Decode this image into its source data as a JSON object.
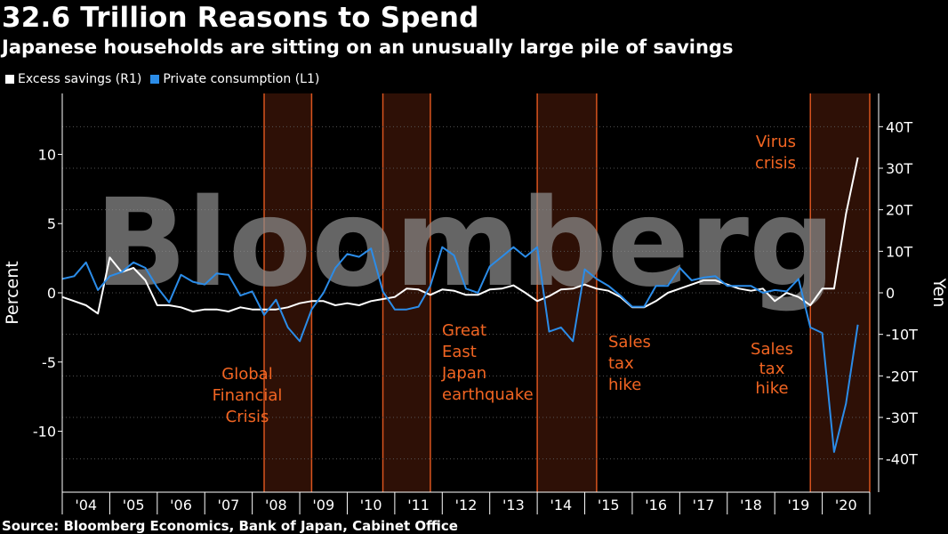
{
  "title": "32.6 Trillion Reasons to Spend",
  "subtitle": "Japanese households are sitting on an unusually large pile of savings",
  "source": "Source: Bloomberg Economics, Bank of Japan, Cabinet Office",
  "watermark": "Bloomberg",
  "colors": {
    "excess": "#ffffff",
    "consumption": "#2b8ce8",
    "shade": "#2e1006",
    "shade_edge": "#d9541e",
    "annotation": "#f26522"
  },
  "chart_data": {
    "type": "line",
    "title": "32.6 Trillion Reasons to Spend",
    "legend": [
      {
        "label": "Excess savings (R1)",
        "color": "#ffffff",
        "axis": "right"
      },
      {
        "label": "Private consumption (L1)",
        "color": "#2b8ce8",
        "axis": "left"
      }
    ],
    "ylabel_left": "Percent",
    "ylabel_right": "Yen",
    "left_ticks": [
      10,
      5,
      0,
      -5,
      -10
    ],
    "left_tick_labels": [
      "10",
      "5",
      "0",
      "-5",
      "-10"
    ],
    "ylim_left": [
      -14.4,
      14.4
    ],
    "right_ticks": [
      40,
      30,
      20,
      10,
      0,
      -10,
      -20,
      -30,
      -40
    ],
    "right_tick_labels": [
      "40T",
      "30T",
      "20T",
      "10T",
      "0",
      "-10T",
      "-20T",
      "-30T",
      "-40T"
    ],
    "ylim_right": [
      -48,
      48
    ],
    "year_labels": [
      "'04",
      "'05",
      "'06",
      "'07",
      "'08",
      "'09",
      "'10",
      "'11",
      "'12",
      "'13",
      "'14",
      "'15",
      "'16",
      "'17",
      "'18",
      "'19",
      "'20"
    ],
    "x_start": 2004.0,
    "x_end": 2021.0,
    "series": [
      {
        "name": "Private consumption (L1)",
        "axis": "left",
        "x": [
          2004.0,
          2004.25,
          2004.5,
          2004.75,
          2005.0,
          2005.25,
          2005.5,
          2005.75,
          2006.0,
          2006.25,
          2006.5,
          2006.75,
          2007.0,
          2007.25,
          2007.5,
          2007.75,
          2008.0,
          2008.25,
          2008.5,
          2008.75,
          2009.0,
          2009.25,
          2009.5,
          2009.75,
          2010.0,
          2010.25,
          2010.5,
          2010.75,
          2011.0,
          2011.25,
          2011.5,
          2011.75,
          2012.0,
          2012.25,
          2012.5,
          2012.75,
          2013.0,
          2013.25,
          2013.5,
          2013.75,
          2014.0,
          2014.25,
          2014.5,
          2014.75,
          2015.0,
          2015.25,
          2015.5,
          2015.75,
          2016.0,
          2016.25,
          2016.5,
          2016.75,
          2017.0,
          2017.25,
          2017.5,
          2017.75,
          2018.0,
          2018.25,
          2018.5,
          2018.75,
          2019.0,
          2019.25,
          2019.5,
          2019.75,
          2020.0,
          2020.25,
          2020.5,
          2020.75
        ],
        "values": [
          1.0,
          1.2,
          2.2,
          0.2,
          1.2,
          1.5,
          2.2,
          1.8,
          0.4,
          -0.7,
          1.3,
          0.8,
          0.6,
          1.4,
          1.3,
          -0.2,
          0.1,
          -1.6,
          -0.5,
          -2.5,
          -3.5,
          -1.2,
          0.0,
          1.8,
          2.8,
          2.6,
          3.2,
          0.1,
          -1.2,
          -1.2,
          -1.0,
          0.5,
          3.3,
          2.7,
          0.3,
          0.0,
          1.9,
          2.6,
          3.3,
          2.6,
          3.3,
          -2.8,
          -2.5,
          -3.5,
          1.7,
          1.0,
          0.5,
          -0.2,
          -1.0,
          -1.0,
          0.5,
          0.5,
          1.8,
          0.9,
          1.1,
          1.2,
          0.5,
          0.5,
          0.5,
          0.0,
          0.2,
          0.1,
          1.0,
          -2.5,
          -2.9,
          -11.5,
          -8.0,
          -2.3
        ]
      },
      {
        "name": "Excess savings (R1)",
        "axis": "right",
        "x": [
          2004.0,
          2004.25,
          2004.5,
          2004.75,
          2005.0,
          2005.25,
          2005.5,
          2005.75,
          2006.0,
          2006.25,
          2006.5,
          2006.75,
          2007.0,
          2007.25,
          2007.5,
          2007.75,
          2008.0,
          2008.25,
          2008.5,
          2008.75,
          2009.0,
          2009.25,
          2009.5,
          2009.75,
          2010.0,
          2010.25,
          2010.5,
          2010.75,
          2011.0,
          2011.25,
          2011.5,
          2011.75,
          2012.0,
          2012.25,
          2012.5,
          2012.75,
          2013.0,
          2013.25,
          2013.5,
          2013.75,
          2014.0,
          2014.25,
          2014.5,
          2014.75,
          2015.0,
          2015.25,
          2015.5,
          2015.75,
          2016.0,
          2016.25,
          2016.5,
          2016.75,
          2017.0,
          2017.25,
          2017.5,
          2017.75,
          2018.0,
          2018.25,
          2018.5,
          2018.75,
          2019.0,
          2019.25,
          2019.5,
          2019.75,
          2020.0,
          2020.25,
          2020.5,
          2020.75
        ],
        "values": [
          -1.0,
          -2.0,
          -3.0,
          -5.0,
          8.5,
          5.0,
          6.0,
          3.0,
          -3.0,
          -3.0,
          -3.5,
          -4.5,
          -4.0,
          -4.0,
          -4.5,
          -3.5,
          -4.0,
          -4.0,
          -4.0,
          -3.5,
          -2.5,
          -2.0,
          -2.0,
          -3.0,
          -2.5,
          -3.0,
          -2.0,
          -1.5,
          -1.0,
          1.0,
          0.8,
          -0.5,
          0.8,
          0.5,
          -0.5,
          -0.5,
          0.8,
          1.0,
          1.8,
          0.0,
          -2.0,
          -0.8,
          0.8,
          1.0,
          2.0,
          1.0,
          0.5,
          -1.0,
          -3.5,
          -3.5,
          -2.0,
          0.0,
          1.0,
          2.0,
          3.0,
          3.0,
          2.0,
          1.0,
          0.5,
          1.0,
          -2.0,
          0.0,
          -1.0,
          -3.0,
          1.0,
          1.0,
          19.0,
          32.6
        ]
      }
    ],
    "shaded_periods": [
      {
        "label": "Global Financial Crisis",
        "start": 2008.25,
        "end": 2009.25
      },
      {
        "label": "Great East Japan earthquake",
        "start": 2010.75,
        "end": 2011.75
      },
      {
        "label": "Sales tax hike",
        "start": 2014.0,
        "end": 2015.25
      },
      {
        "label": "Sales tax hike / Virus crisis",
        "start": 2019.75,
        "end": 2021.0
      }
    ],
    "annotations": [
      {
        "id": "gfc",
        "lines": [
          "Global",
          "Financial",
          "Crisis"
        ]
      },
      {
        "id": "quake",
        "lines": [
          "Great",
          "East",
          "Japan",
          "earthquake"
        ]
      },
      {
        "id": "tax2014",
        "lines": [
          "Sales",
          "tax",
          "hike"
        ]
      },
      {
        "id": "tax2019",
        "lines": [
          "Sales",
          "tax",
          "hike"
        ]
      },
      {
        "id": "virus",
        "lines": [
          "Virus",
          "crisis"
        ]
      }
    ]
  }
}
